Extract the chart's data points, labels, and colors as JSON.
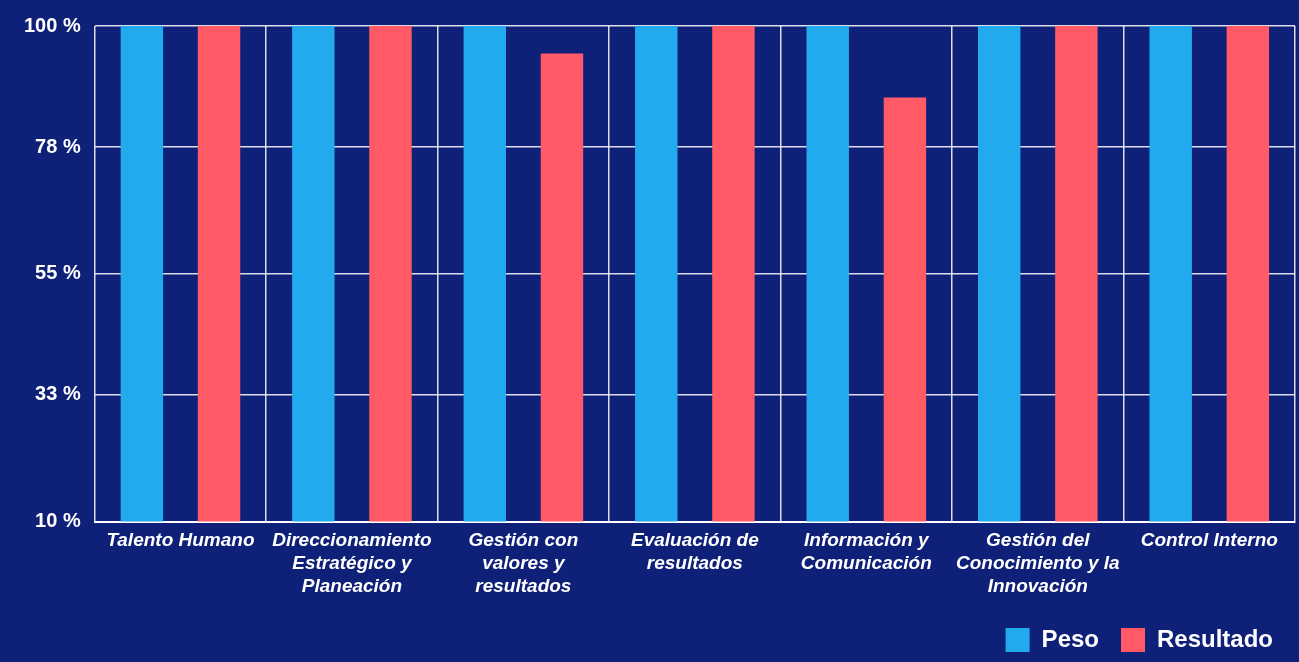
{
  "chart_data": {
    "type": "bar",
    "categories": [
      "Talento Humano",
      "Direccionamiento Estratégico y Planeación",
      "Gestión con valores y resultados",
      "Evaluación de resultados",
      "Información y Comunicación",
      "Gestión del Conocimiento y la Innovación",
      "Control Interno"
    ],
    "series": [
      {
        "name": "Peso",
        "color": "#22aaee",
        "values": [
          100,
          100,
          100,
          100,
          100,
          100,
          100
        ]
      },
      {
        "name": "Resultado",
        "color": "#ff5a66",
        "values": [
          100,
          100,
          95,
          100,
          87,
          100,
          100
        ]
      }
    ],
    "ylim": [
      10,
      100
    ],
    "yticks": [
      {
        "value": 10,
        "label": "10 %"
      },
      {
        "value": 33,
        "label": "33 %"
      },
      {
        "value": 55,
        "label": "55 %"
      },
      {
        "value": 78,
        "label": "78 %"
      },
      {
        "value": 100,
        "label": "100 %"
      }
    ],
    "grid": true,
    "legend": "bottom right"
  }
}
